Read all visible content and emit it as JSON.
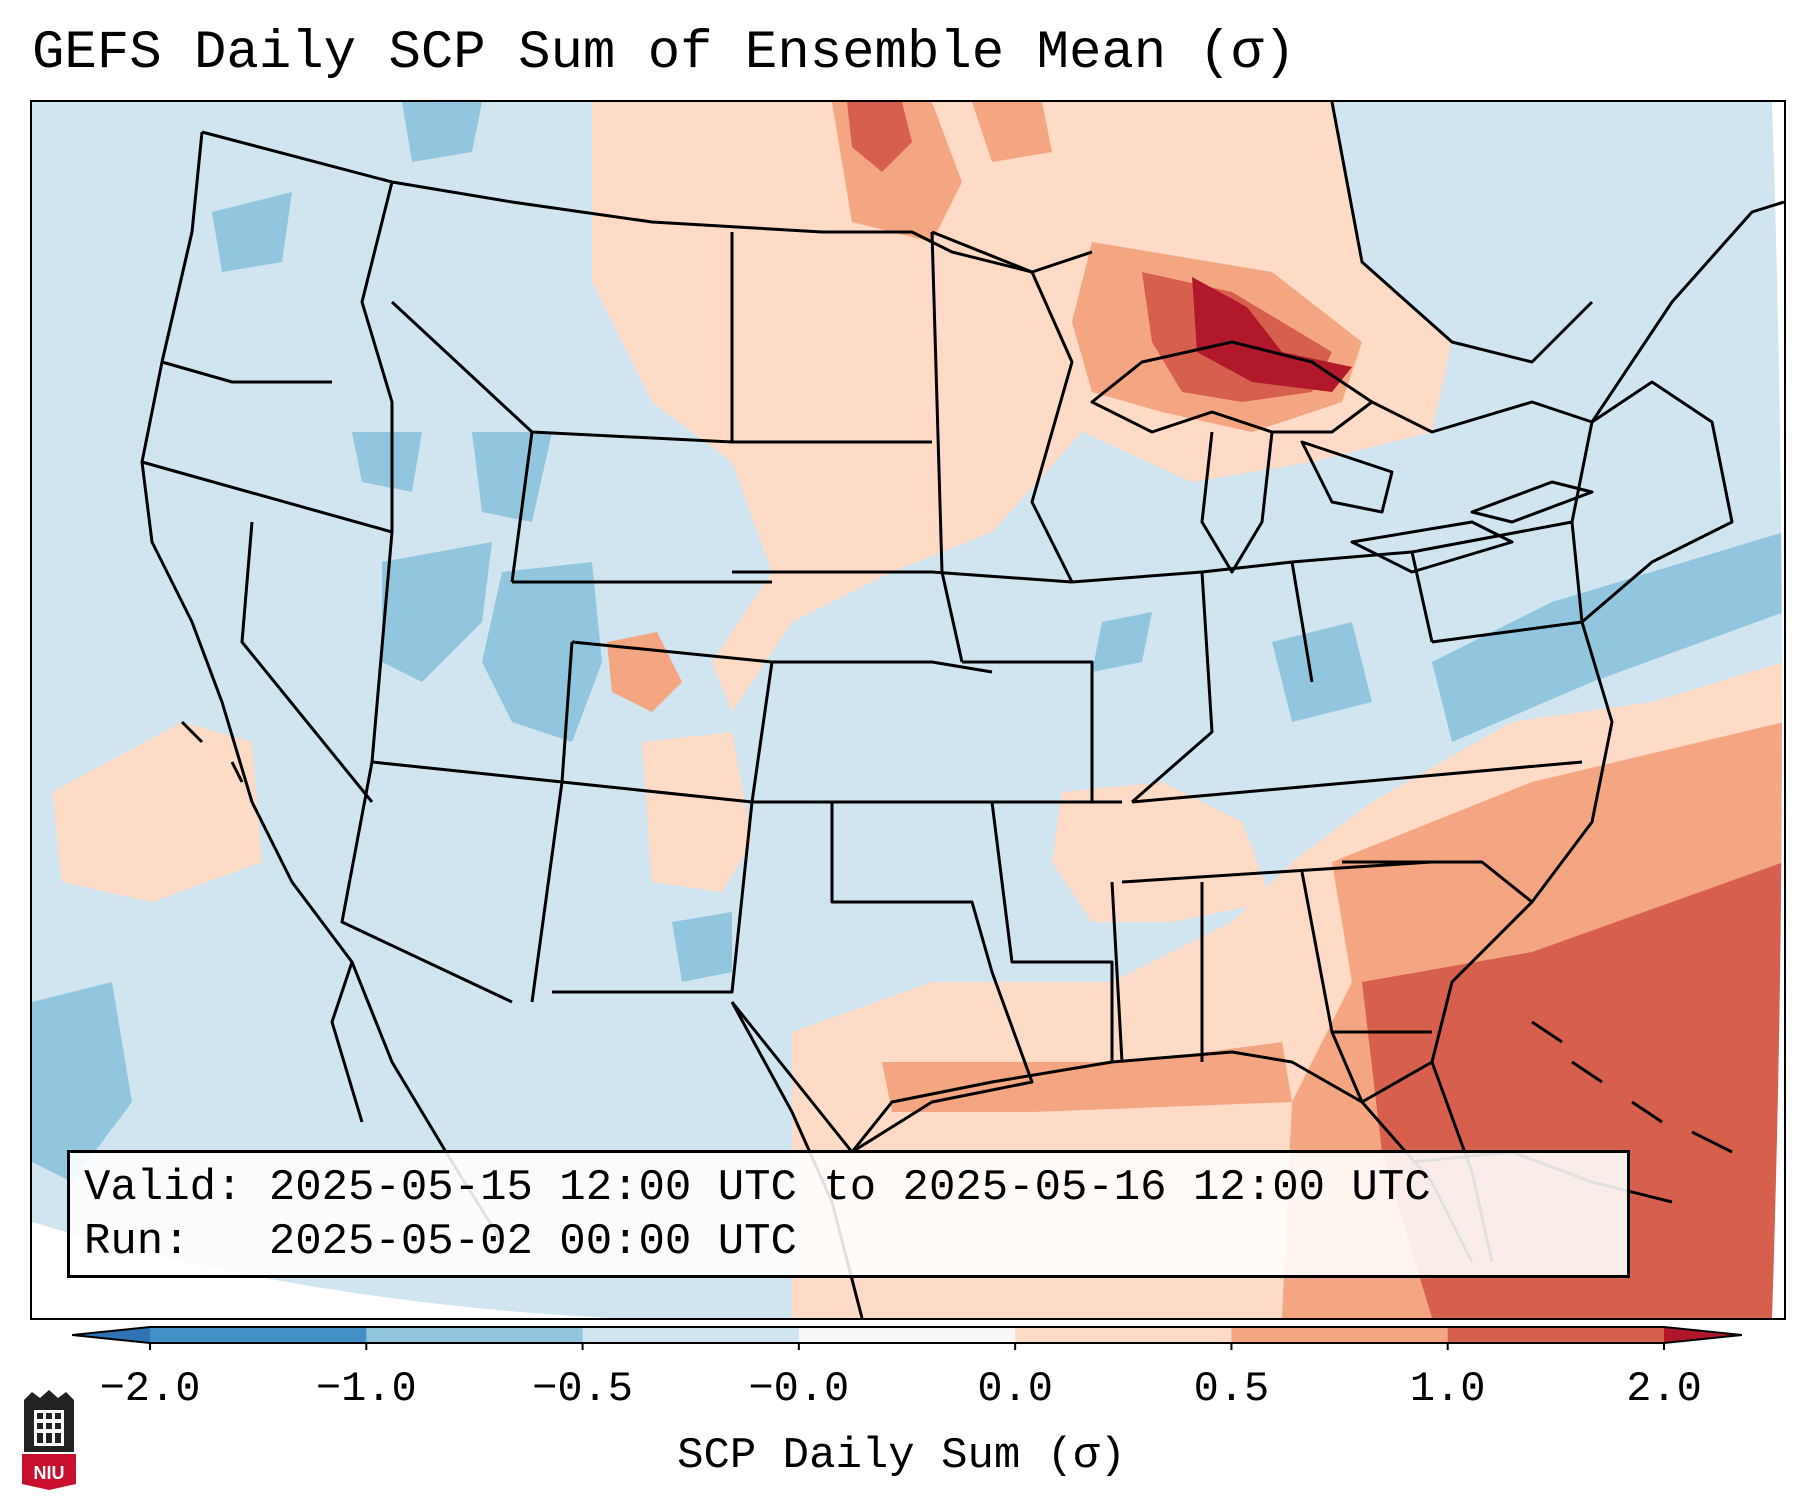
{
  "title": "GEFS Daily SCP Sum of Ensemble Mean (σ)",
  "info": {
    "valid_label": "Valid:",
    "valid_value": "2025-05-15 12:00 UTC to 2025-05-16 12:00 UTC",
    "run_label": "Run:",
    "run_value": "2025-05-02 00:00 UTC"
  },
  "colorbar": {
    "label": "SCP Daily Sum (σ)",
    "ticks": [
      "−2.0",
      "−1.0",
      "−0.5",
      "−0.0",
      "0.0",
      "0.5",
      "1.0",
      "2.0"
    ],
    "bins": [
      {
        "range": [
          -99,
          -2.0
        ],
        "color": "#2f72b5"
      },
      {
        "range": [
          -2.0,
          -1.0
        ],
        "color": "#4390c6"
      },
      {
        "range": [
          -1.0,
          -0.5
        ],
        "color": "#92c5de"
      },
      {
        "range": [
          -0.5,
          -0.0
        ],
        "color": "#d1e5f0"
      },
      {
        "range": [
          -0.0,
          0.0
        ],
        "color": "#f7f7f7"
      },
      {
        "range": [
          0.0,
          0.5
        ],
        "color": "#fddbc7"
      },
      {
        "range": [
          0.5,
          1.0
        ],
        "color": "#f4a582"
      },
      {
        "range": [
          1.0,
          2.0
        ],
        "color": "#d6604d"
      },
      {
        "range": [
          2.0,
          99
        ],
        "color": "#b2182b"
      }
    ]
  },
  "colors": {
    "background_field": "#cfe3ef",
    "state_lines": "#000000",
    "ocean_mask": "#ffffff"
  },
  "logo": {
    "text": "NIU",
    "icon": "niu-logo-icon"
  }
}
